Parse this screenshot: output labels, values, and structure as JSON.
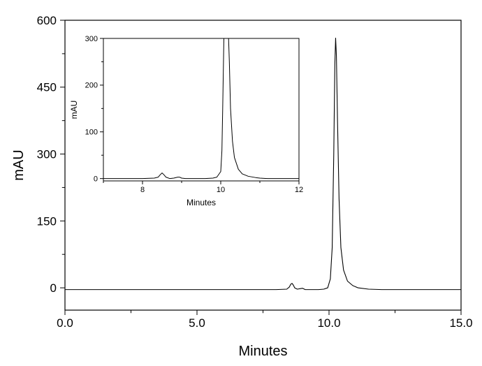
{
  "chart_data": [
    {
      "type": "line",
      "xlabel": "Minutes",
      "ylabel": "mAU",
      "xlim": [
        0,
        15
      ],
      "ylim": [
        -50,
        600
      ],
      "x_ticks": [
        0,
        5,
        10,
        15
      ],
      "x_tick_labels": [
        "0.0",
        "5.0",
        "10.0",
        "15.0"
      ],
      "y_ticks": [
        0,
        150,
        300,
        450,
        600
      ],
      "y_tick_labels": [
        "0",
        "150",
        "300",
        "450",
        "600"
      ],
      "grid": false,
      "series": [
        {
          "x": [
            0,
            1,
            2,
            3,
            4,
            5,
            6,
            7,
            7.5,
            8,
            8.4,
            8.5,
            8.55,
            8.6,
            8.65,
            8.7,
            8.8,
            8.9,
            9.0,
            9.1,
            9.3,
            9.6,
            9.8,
            9.95,
            10.05,
            10.12,
            10.18,
            10.22,
            10.25,
            10.28,
            10.32,
            10.38,
            10.45,
            10.55,
            10.7,
            10.9,
            11.1,
            11.5,
            12,
            13,
            14,
            15
          ],
          "y": [
            -4,
            -4,
            -4,
            -4,
            -4,
            -4,
            -4,
            -4,
            -4,
            -4,
            -3,
            2,
            8,
            10,
            6,
            0,
            -3,
            -2,
            -1,
            -4,
            -4,
            -4,
            -3,
            0,
            20,
            90,
            300,
            500,
            560,
            520,
            380,
            200,
            90,
            40,
            15,
            5,
            0,
            -3,
            -4,
            -4,
            -4,
            -4
          ]
        }
      ]
    },
    {
      "type": "line",
      "xlabel": "Minutes",
      "ylabel": "mAU",
      "xlim": [
        7,
        12
      ],
      "ylim": [
        -5,
        300
      ],
      "x_ticks": [
        8,
        10,
        12
      ],
      "x_tick_labels": [
        "8",
        "10",
        "12"
      ],
      "y_ticks": [
        0,
        100,
        200,
        300
      ],
      "y_tick_labels": [
        "0",
        "100",
        "200",
        "300"
      ],
      "grid": false,
      "series": [
        {
          "x": [
            7,
            7.5,
            8,
            8.3,
            8.4,
            8.45,
            8.5,
            8.55,
            8.6,
            8.7,
            8.8,
            8.9,
            8.95,
            9.0,
            9.1,
            9.3,
            9.6,
            9.8,
            9.9,
            10.0,
            10.03,
            10.05,
            10.08,
            10.2,
            10.22,
            10.25,
            10.3,
            10.35,
            10.45,
            10.55,
            10.7,
            10.9,
            11.0,
            11.2,
            11.5,
            12
          ],
          "y": [
            0,
            0,
            0,
            1,
            3,
            8,
            12,
            8,
            3,
            0,
            1,
            3,
            3,
            1,
            0,
            0,
            0,
            1,
            3,
            15,
            60,
            150,
            300,
            300,
            250,
            150,
            80,
            45,
            20,
            10,
            5,
            2,
            1,
            0,
            0,
            0
          ]
        }
      ]
    }
  ]
}
